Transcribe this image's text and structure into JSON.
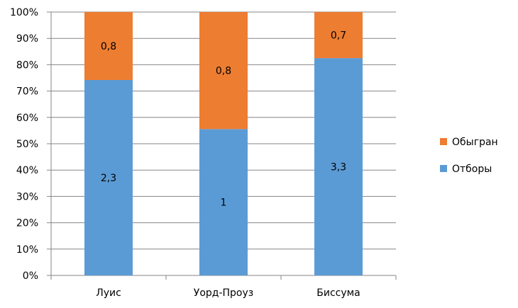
{
  "chart_data": {
    "type": "bar",
    "stacked": "percent",
    "title": "",
    "xlabel": "",
    "ylabel": "",
    "ylim": [
      0,
      100
    ],
    "yticks": [
      "0%",
      "10%",
      "20%",
      "30%",
      "40%",
      "50%",
      "60%",
      "70%",
      "80%",
      "90%",
      "100%"
    ],
    "categories": [
      "Луис",
      "Уорд-Проуз",
      "Биссума"
    ],
    "series": [
      {
        "name": "Отборы",
        "values": [
          2.3,
          1,
          3.3
        ],
        "labels": [
          "2,3",
          "1",
          "3,3"
        ],
        "color": "#5B9BD5"
      },
      {
        "name": "Обыгран",
        "values": [
          0.8,
          0.8,
          0.7
        ],
        "labels": [
          "0,8",
          "0,8",
          "0,7"
        ],
        "color": "#ED7D31"
      }
    ],
    "legend": {
      "position": "right",
      "order": [
        "Обыгран",
        "Отборы"
      ]
    },
    "grid": true
  }
}
